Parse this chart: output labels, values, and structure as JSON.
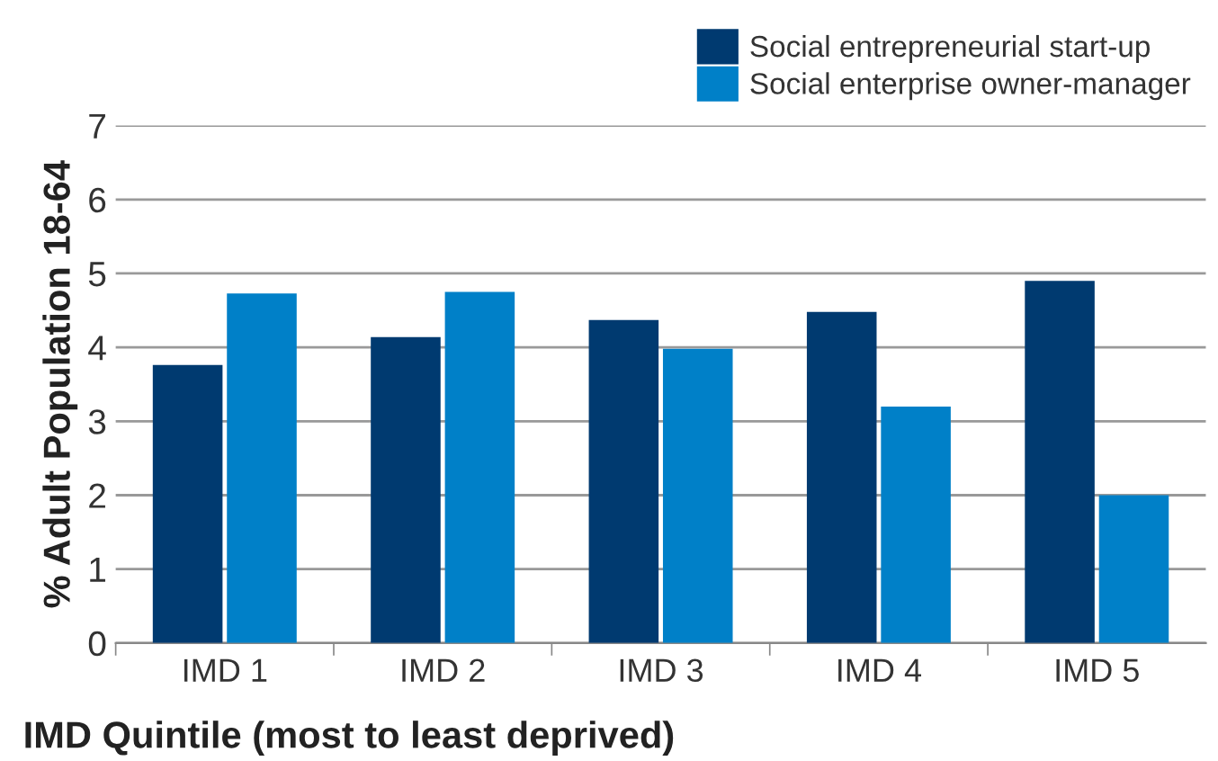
{
  "chart_data": {
    "type": "bar",
    "xlabel": "IMD Quintile (most to least deprived)",
    "ylabel": "% Adult Population 18-64",
    "categories": [
      "IMD 1",
      "IMD 2",
      "IMD 3",
      "IMD 4",
      "IMD 5"
    ],
    "series": [
      {
        "name": "Social entrepreneurial start-up",
        "color": "#003a70",
        "values": [
          3.76,
          4.14,
          4.37,
          4.48,
          4.9
        ]
      },
      {
        "name": "Social enterprise owner-manager",
        "color": "#0080c8",
        "values": [
          4.73,
          4.75,
          3.98,
          3.2,
          2.0
        ]
      }
    ],
    "ylim": [
      0,
      7
    ],
    "yticks": [
      0,
      1,
      2,
      3,
      4,
      5,
      6,
      7
    ],
    "grid": "y",
    "legend": "top right"
  }
}
